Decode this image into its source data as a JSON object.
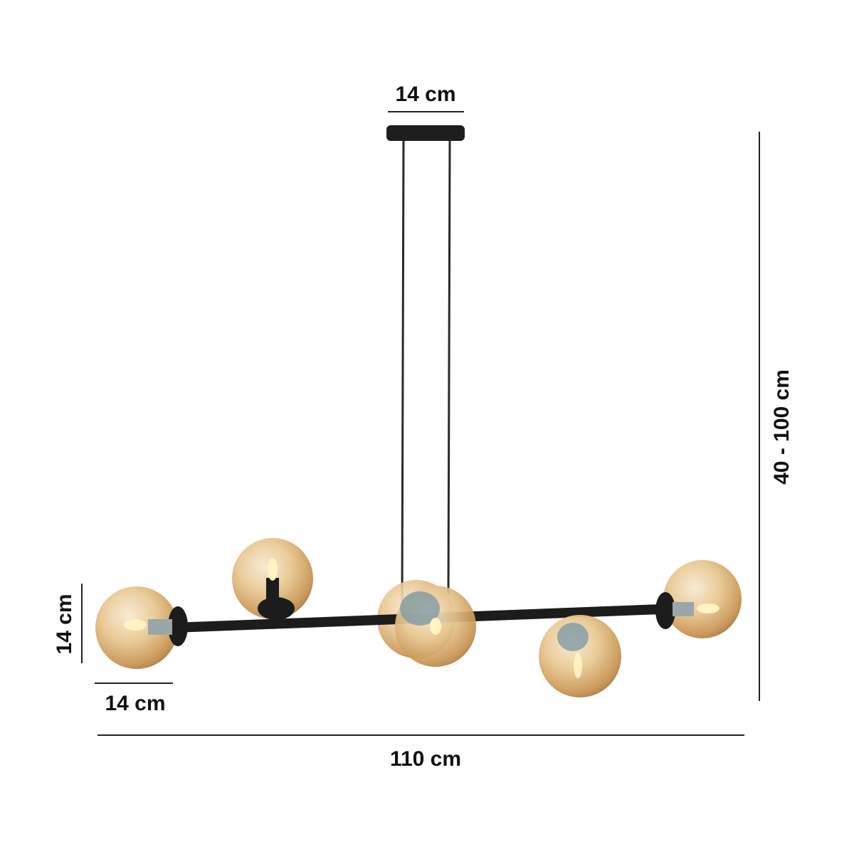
{
  "dimensions": {
    "canopy_width": "14 cm",
    "height_range": "40 - 100 cm",
    "globe_height": "14 cm",
    "globe_width": "14 cm",
    "total_width": "110 cm"
  },
  "colors": {
    "glass_amber": "#e6c38e",
    "metal_black": "#1c1c1c",
    "dimension_line": "#222222"
  }
}
